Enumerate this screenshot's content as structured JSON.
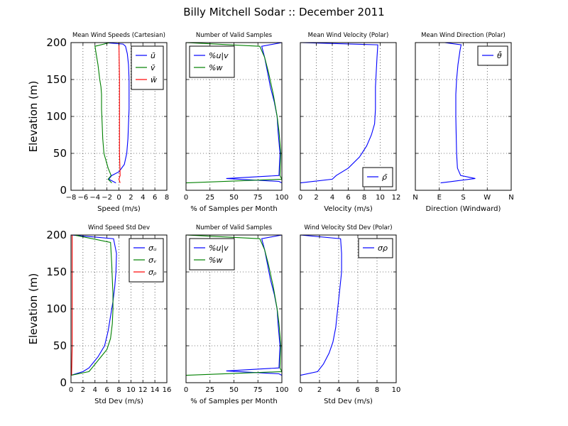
{
  "figure_title": "Billy Mitchell Sodar :: December 2011",
  "colors": {
    "u": "#0000ff",
    "v": "#008000",
    "w": "#ff0000"
  },
  "chart_data": [
    {
      "id": "p1",
      "type": "line",
      "title": "Mean Wind Speeds (Cartesian)",
      "xlabel": "Speed (m/s)",
      "ylabel": "Elevation (m)",
      "xlim": [
        -8,
        8
      ],
      "ylim": [
        0,
        200
      ],
      "xticks": [
        -8,
        -6,
        -4,
        -2,
        0,
        2,
        4,
        6,
        8
      ],
      "xticklabels": [
        "−8",
        "−6",
        "−4",
        "−2",
        "0",
        "2",
        "4",
        "6",
        "8"
      ],
      "yticks": [
        0,
        50,
        100,
        150,
        200
      ],
      "yticklabels": [
        "0",
        "50",
        "100",
        "150",
        "200"
      ],
      "grid": true,
      "legend": "top-right",
      "series": [
        {
          "name": "ū",
          "color": "#0000ff",
          "x": [
            -0.5,
            -1.7,
            -1.2,
            0.0,
            0.9,
            1.3,
            1.5,
            1.6,
            1.7,
            1.7,
            1.7,
            1.6,
            1.4,
            1.1,
            0.7,
            -2.5
          ],
          "y": [
            10,
            15,
            20,
            25,
            35,
            50,
            70,
            90,
            110,
            130,
            150,
            170,
            185,
            195,
            198,
            200
          ]
        },
        {
          "name": "v̄",
          "color": "#008000",
          "x": [
            -1.2,
            -1.8,
            -1.3,
            -1.8,
            -2.5,
            -2.7,
            -2.8,
            -2.9,
            -2.9,
            -3.0,
            -3.2,
            -3.5,
            -3.8,
            -4.0,
            -1.5
          ],
          "y": [
            10,
            15,
            20,
            30,
            50,
            70,
            90,
            110,
            130,
            140,
            150,
            170,
            185,
            195,
            200
          ]
        },
        {
          "name": "w̄",
          "color": "#ff0000",
          "x": [
            0.2,
            0.0,
            0.2,
            0.1,
            0.1,
            0.1,
            0.0
          ],
          "y": [
            10,
            15,
            20,
            50,
            100,
            150,
            200
          ]
        }
      ]
    },
    {
      "id": "p2",
      "type": "line",
      "title": "Number of Valid Samples",
      "xlabel": "% of Samples per Month",
      "ylabel": "",
      "xlim": [
        0,
        100
      ],
      "ylim": [
        0,
        200
      ],
      "xticks": [
        0,
        25,
        50,
        75,
        100
      ],
      "xticklabels": [
        "0",
        "25",
        "50",
        "75",
        "100"
      ],
      "yticks": [
        0,
        50,
        100,
        150,
        200
      ],
      "yticklabels": [],
      "grid": true,
      "legend": "top-left",
      "series": [
        {
          "name": "%u|v",
          "color": "#0000ff",
          "x": [
            100,
            97,
            42,
            97,
            98,
            96,
            95,
            92,
            88,
            85,
            82,
            79,
            100
          ],
          "y": [
            10,
            12,
            16,
            20,
            50,
            80,
            100,
            120,
            140,
            160,
            180,
            195,
            200
          ]
        },
        {
          "name": "%w",
          "color": "#008000",
          "x": [
            0,
            100,
            98,
            99,
            97,
            95,
            91,
            86,
            82,
            77,
            0
          ],
          "y": [
            10,
            15,
            20,
            50,
            80,
            100,
            130,
            160,
            180,
            195,
            200
          ]
        }
      ]
    },
    {
      "id": "p3",
      "type": "line",
      "title": "Mean Wind Velocity (Polar)",
      "xlabel": "Velocity (m/s)",
      "ylabel": "",
      "xlim": [
        0,
        12
      ],
      "ylim": [
        0,
        200
      ],
      "xticks": [
        0,
        2,
        4,
        6,
        8,
        10,
        12
      ],
      "xticklabels": [
        "0",
        "2",
        "4",
        "6",
        "8",
        "10",
        "12"
      ],
      "yticks": [
        0,
        50,
        100,
        150,
        200
      ],
      "yticklabels": [],
      "grid": true,
      "legend": "bottom-right",
      "series": [
        {
          "name": "ρ̄",
          "color": "#0000ff",
          "x": [
            0.0,
            4.0,
            4.5,
            6.0,
            7.4,
            8.3,
            8.9,
            9.3,
            9.4,
            9.4,
            9.5,
            9.6,
            9.7,
            0.0
          ],
          "y": [
            10,
            15,
            20,
            30,
            45,
            60,
            75,
            90,
            110,
            140,
            160,
            180,
            197,
            200
          ]
        }
      ]
    },
    {
      "id": "p4",
      "type": "line",
      "title": "Mean Wind Direction (Polar)",
      "xlabel": "Direction (Windward)",
      "ylabel": "",
      "xlim": [
        0,
        360
      ],
      "ylim": [
        0,
        200
      ],
      "xticks": [
        0,
        90,
        180,
        270,
        360
      ],
      "xticklabels": [
        "N",
        "E",
        "S",
        "W",
        "N"
      ],
      "yticks": [
        0,
        50,
        100,
        150,
        200
      ],
      "yticklabels": [],
      "grid": true,
      "legend": "top-right",
      "series": [
        {
          "name": "θ̄",
          "color": "#0000ff",
          "x": [
            95,
            225,
            170,
            158,
            155,
            153,
            152,
            152,
            155,
            160,
            168,
            172,
            110
          ],
          "y": [
            10,
            16,
            20,
            30,
            50,
            80,
            100,
            130,
            150,
            170,
            190,
            197,
            200
          ]
        }
      ]
    },
    {
      "id": "p5",
      "type": "line",
      "title": "Wind Speed Std Dev",
      "xlabel": "Std Dev (m/s)",
      "ylabel": "Elevation (m)",
      "xlim": [
        0,
        16
      ],
      "ylim": [
        0,
        200
      ],
      "xticks": [
        0,
        2,
        4,
        6,
        8,
        10,
        12,
        14,
        16
      ],
      "xticklabels": [
        "0",
        "2",
        "4",
        "6",
        "8",
        "10",
        "12",
        "14",
        "16"
      ],
      "yticks": [
        0,
        50,
        100,
        150,
        200
      ],
      "yticklabels": [
        "0",
        "50",
        "100",
        "150",
        "200"
      ],
      "grid": true,
      "legend": "top-right",
      "series": [
        {
          "name": "σᵤ",
          "color": "#0000ff",
          "x": [
            0.0,
            2.0,
            3.0,
            4.5,
            5.6,
            6.2,
            6.6,
            7.0,
            7.3,
            7.5,
            7.6,
            7.1,
            0.0
          ],
          "y": [
            10,
            15,
            20,
            35,
            50,
            70,
            90,
            110,
            130,
            150,
            175,
            195,
            200
          ]
        },
        {
          "name": "σᵥ",
          "color": "#008000",
          "x": [
            0.0,
            3.0,
            4.0,
            5.0,
            6.0,
            6.6,
            6.9,
            7.0,
            7.0,
            6.9,
            6.8,
            6.6,
            0.5
          ],
          "y": [
            10,
            15,
            25,
            35,
            45,
            60,
            80,
            100,
            120,
            140,
            160,
            190,
            200
          ]
        },
        {
          "name": "σᵨ",
          "color": "#ff0000",
          "x": [
            0.1,
            0.2,
            0.2,
            0.2,
            0.2
          ],
          "y": [
            10,
            50,
            100,
            150,
            200
          ]
        }
      ]
    },
    {
      "id": "p6",
      "type": "line",
      "title": "Number of Valid Samples",
      "xlabel": "% of Samples per Month",
      "ylabel": "",
      "xlim": [
        0,
        100
      ],
      "ylim": [
        0,
        200
      ],
      "xticks": [
        0,
        25,
        50,
        75,
        100
      ],
      "xticklabels": [
        "0",
        "25",
        "50",
        "75",
        "100"
      ],
      "yticks": [
        0,
        50,
        100,
        150,
        200
      ],
      "yticklabels": [],
      "grid": true,
      "legend": "top-left",
      "series": [
        {
          "name": "%u|v",
          "color": "#0000ff",
          "x": [
            100,
            97,
            42,
            97,
            98,
            96,
            95,
            92,
            88,
            85,
            82,
            79,
            100
          ],
          "y": [
            10,
            12,
            16,
            20,
            50,
            80,
            100,
            120,
            140,
            160,
            180,
            195,
            200
          ]
        },
        {
          "name": "%w",
          "color": "#008000",
          "x": [
            0,
            100,
            98,
            99,
            97,
            95,
            91,
            86,
            82,
            77,
            0
          ],
          "y": [
            10,
            15,
            20,
            50,
            80,
            100,
            130,
            160,
            180,
            195,
            200
          ]
        }
      ]
    },
    {
      "id": "p7",
      "type": "line",
      "title": "Wind Velocity Std Dev (Polar)",
      "xlabel": "Std Dev (m/s)",
      "ylabel": "",
      "xlim": [
        0,
        10
      ],
      "ylim": [
        0,
        200
      ],
      "xticks": [
        0,
        2,
        4,
        6,
        8,
        10
      ],
      "xticklabels": [
        "0",
        "2",
        "4",
        "6",
        "8",
        "10"
      ],
      "yticks": [
        0,
        50,
        100,
        150,
        200
      ],
      "yticklabels": [],
      "grid": true,
      "legend": "top-right",
      "series": [
        {
          "name": "σρ",
          "color": "#0000ff",
          "x": [
            0.0,
            1.8,
            2.4,
            3.0,
            3.4,
            3.7,
            3.9,
            4.1,
            4.3,
            4.3,
            4.2,
            0.0
          ],
          "y": [
            10,
            15,
            25,
            40,
            55,
            75,
            100,
            125,
            150,
            175,
            195,
            200
          ]
        }
      ]
    }
  ]
}
